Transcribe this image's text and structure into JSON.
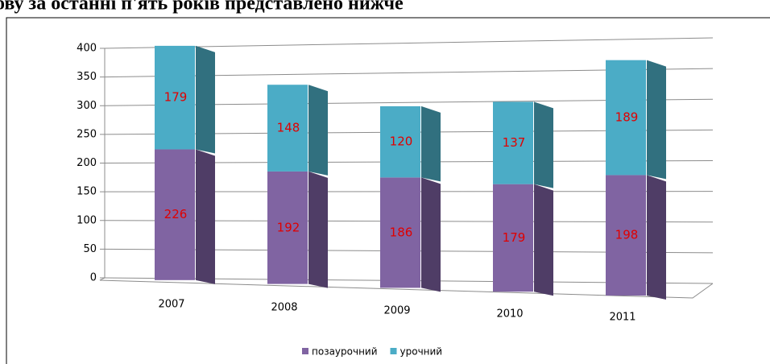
{
  "heading": "ову за останні п'ять років представлено нижче",
  "chart_data": {
    "type": "bar",
    "stacked": true,
    "categories": [
      "2007",
      "2008",
      "2009",
      "2010",
      "2011"
    ],
    "series": [
      {
        "name": "позаурочний",
        "color": "#8064a2",
        "side_color": "#4f3d66",
        "values": [
          226,
          192,
          186,
          179,
          198
        ]
      },
      {
        "name": "урочний",
        "color": "#4bacc6",
        "side_color": "#31707f",
        "values": [
          179,
          148,
          120,
          137,
          189
        ]
      }
    ],
    "label_color": "#e00000",
    "ylim": [
      0,
      400
    ],
    "yticks": [
      0,
      50,
      100,
      150,
      200,
      250,
      300,
      350,
      400
    ],
    "grid": true,
    "legend": "bottom"
  }
}
